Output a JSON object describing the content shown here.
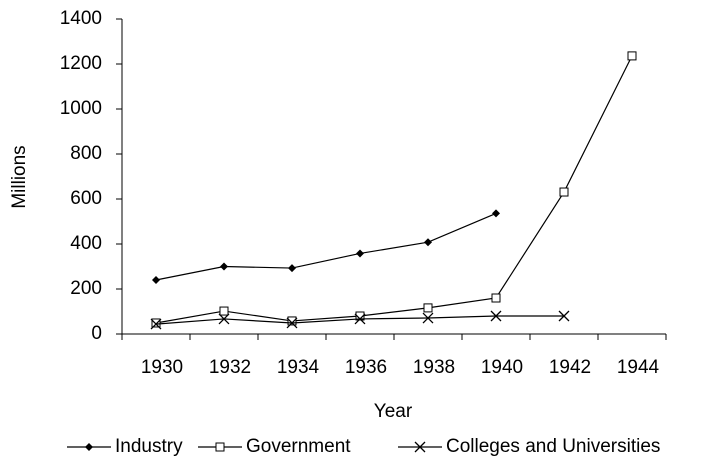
{
  "chart_data": {
    "type": "line",
    "x_label": "Year",
    "y_label": "Millions",
    "categories": [
      "1930",
      "1932",
      "1934",
      "1936",
      "1938",
      "1940",
      "1942",
      "1944"
    ],
    "series": [
      {
        "name": "Industry",
        "color": "#000000",
        "marker": "diamond",
        "values": [
          240,
          300,
          293,
          358,
          408,
          536,
          null,
          null
        ]
      },
      {
        "name": "Government",
        "color": "#000000",
        "marker": "square",
        "values": [
          49,
          102,
          58,
          80,
          116,
          160,
          631,
          1236
        ]
      },
      {
        "name": "Colleges and Universities",
        "color": "#000000",
        "marker": "x",
        "values": [
          44,
          67,
          49,
          67,
          71,
          80,
          80,
          null
        ]
      }
    ],
    "ylim": [
      0,
      1400
    ],
    "yticks": [
      0,
      200,
      400,
      600,
      800,
      1000,
      1200,
      1400
    ],
    "grid": false,
    "legend": "bottom"
  }
}
